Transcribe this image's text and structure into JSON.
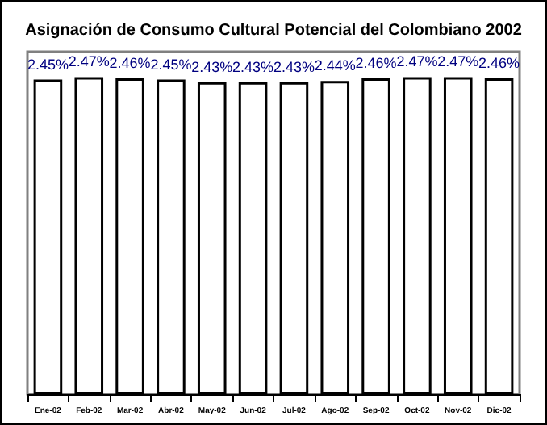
{
  "chart_data": {
    "type": "bar",
    "title": "Asignación de Consumo Cultural Potencial del Colombiano 2002",
    "categories": [
      "Ene-02",
      "Feb-02",
      "Mar-02",
      "Abr-02",
      "May-02",
      "Jun-02",
      "Jul-02",
      "Ago-02",
      "Sep-02",
      "Oct-02",
      "Nov-02",
      "Dic-02"
    ],
    "values": [
      2.45,
      2.47,
      2.46,
      2.45,
      2.43,
      2.43,
      2.43,
      2.44,
      2.46,
      2.47,
      2.47,
      2.46
    ],
    "value_labels": [
      "2.45%",
      "2.47%",
      "2.46%",
      "2.45%",
      "2.43%",
      "2.43%",
      "2.43%",
      "2.44%",
      "2.46%",
      "2.47%",
      "2.47%",
      "2.46%"
    ],
    "color": "#ffffff",
    "tick_labels": "x"
  }
}
